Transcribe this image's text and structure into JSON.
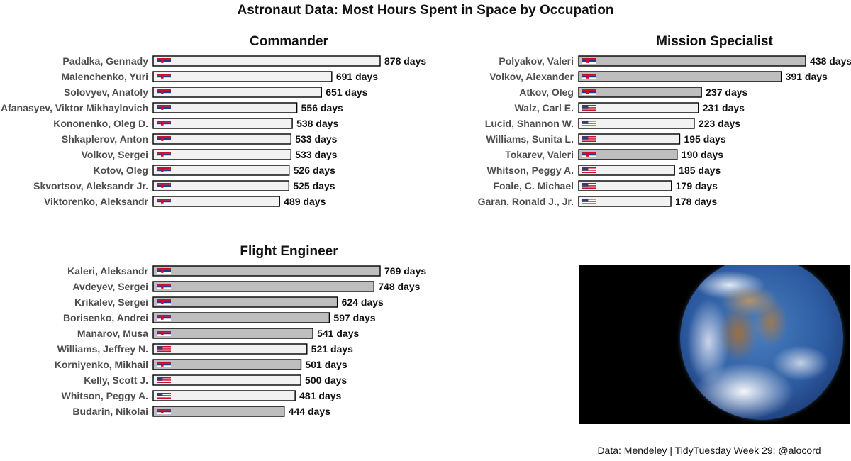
{
  "title": "Astronaut Data: Most Hours Spent in Space by Occupation",
  "caption": "Data: Mendeley | TidyTuesday Week 29: @alocord",
  "image": {
    "description_icon": "earth-photo-icon"
  },
  "colors": {
    "soviet_bar": "#bebebe",
    "usa_bar": "#f2f2f2",
    "outline": "#000000"
  },
  "chart_data": [
    {
      "type": "bar",
      "orientation": "horizontal",
      "title": "Commander",
      "value_suffix": " days",
      "categories": [
        "Padalka, Gennady",
        "Malenchenko, Yuri",
        "Solovyev, Anatoly",
        "Afanasyev, Viktor Mikhaylovich",
        "Kononenko, Oleg D.",
        "Shkaplerov, Anton",
        "Volkov, Sergei",
        "Kotov, Oleg",
        "Skvortsov, Aleksandr Jr.",
        "Viktorenko, Aleksandr"
      ],
      "values": [
        878,
        691,
        651,
        556,
        538,
        533,
        533,
        526,
        525,
        489
      ],
      "flags": [
        "russia-flag-icon",
        "russia-flag-icon",
        "russia-flag-icon",
        "russia-flag-icon",
        "russia-flag-icon",
        "russia-flag-icon",
        "russia-flag-icon",
        "russia-flag-icon",
        "russia-flag-icon",
        "russia-flag-icon"
      ],
      "bar_colors": [
        "#f2f2f2",
        "#f2f2f2",
        "#f2f2f2",
        "#f2f2f2",
        "#f2f2f2",
        "#f2f2f2",
        "#f2f2f2",
        "#f2f2f2",
        "#f2f2f2",
        "#f2f2f2"
      ],
      "xlim": [
        0,
        878
      ]
    },
    {
      "type": "bar",
      "orientation": "horizontal",
      "title": "Mission Specialist",
      "value_suffix": " days",
      "categories": [
        "Polyakov, Valeri",
        "Volkov, Alexander",
        "Atkov, Oleg",
        "Walz, Carl E.",
        "Lucid, Shannon W.",
        "Williams, Sunita L.",
        "Tokarev, Valeri",
        "Whitson, Peggy A.",
        "Foale, C. Michael",
        "Garan, Ronald J., Jr."
      ],
      "values": [
        438,
        391,
        237,
        231,
        223,
        195,
        190,
        185,
        179,
        178
      ],
      "flags": [
        "russia-flag-icon",
        "russia-flag-icon",
        "russia-flag-icon",
        "usa-flag-icon",
        "usa-flag-icon",
        "usa-flag-icon",
        "russia-flag-icon",
        "usa-flag-icon",
        "usa-flag-icon",
        "usa-flag-icon"
      ],
      "bar_colors": [
        "#bebebe",
        "#bebebe",
        "#bebebe",
        "#f2f2f2",
        "#f2f2f2",
        "#f2f2f2",
        "#bebebe",
        "#f2f2f2",
        "#f2f2f2",
        "#f2f2f2"
      ],
      "xlim": [
        0,
        438
      ]
    },
    {
      "type": "bar",
      "orientation": "horizontal",
      "title": "Flight Engineer",
      "value_suffix": " days",
      "categories": [
        "Kaleri, Aleksandr",
        "Avdeyev, Sergei",
        "Krikalev, Sergei",
        "Borisenko, Andrei",
        "Manarov, Musa",
        "Williams, Jeffrey N.",
        "Korniyenko, Mikhail",
        "Kelly, Scott J.",
        "Whitson, Peggy A.",
        "Budarin, Nikolai"
      ],
      "values": [
        769,
        748,
        624,
        597,
        541,
        521,
        501,
        500,
        481,
        444
      ],
      "flags": [
        "russia-flag-icon",
        "russia-flag-icon",
        "russia-flag-icon",
        "russia-flag-icon",
        "russia-flag-icon",
        "usa-flag-icon",
        "russia-flag-icon",
        "usa-flag-icon",
        "usa-flag-icon",
        "russia-flag-icon"
      ],
      "bar_colors": [
        "#bebebe",
        "#bebebe",
        "#bebebe",
        "#bebebe",
        "#bebebe",
        "#f2f2f2",
        "#bebebe",
        "#f2f2f2",
        "#f2f2f2",
        "#bebebe"
      ],
      "xlim": [
        0,
        769
      ]
    }
  ]
}
